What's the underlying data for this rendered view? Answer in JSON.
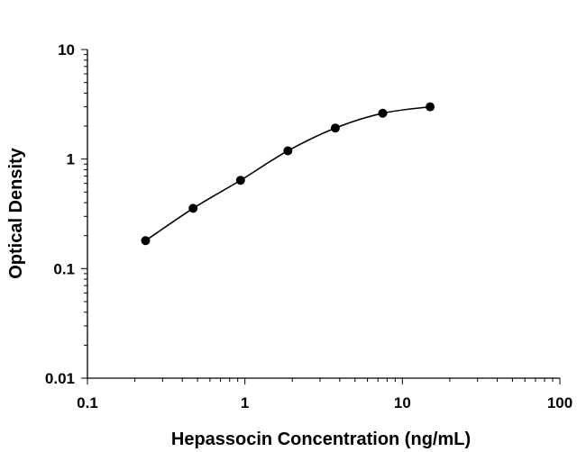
{
  "chart_data": {
    "type": "scatter",
    "title": "",
    "xlabel": "Hepassocin Concentration (ng/mL)",
    "ylabel": "Optical Density",
    "x_scale": "log",
    "y_scale": "log",
    "xlim": [
      0.1,
      100
    ],
    "ylim": [
      0.01,
      10
    ],
    "x_ticks": [
      "0.1",
      "1",
      "10",
      "100"
    ],
    "y_ticks": [
      "0.01",
      "0.1",
      "1",
      "10"
    ],
    "grid": false,
    "legend": "none",
    "fit_curve": true,
    "series": [
      {
        "x": [
          0.234,
          0.469,
          0.938,
          1.875,
          3.75,
          7.5,
          15
        ],
        "y": [
          0.18,
          0.355,
          0.64,
          1.19,
          1.92,
          2.62,
          3.0
        ]
      }
    ],
    "colors": {
      "points": "#000000",
      "line": "#000000",
      "axes": "#000000"
    }
  }
}
